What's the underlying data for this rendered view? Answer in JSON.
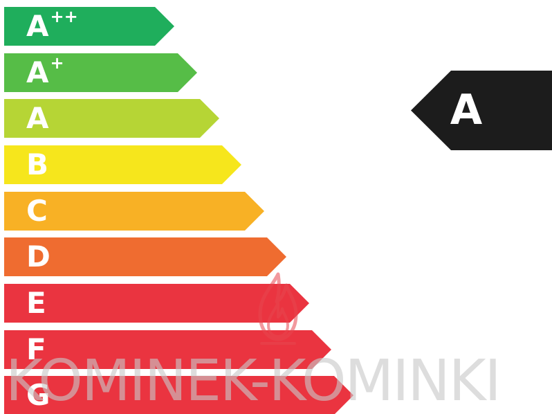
{
  "energy_scale": {
    "classes": [
      {
        "letter": "A",
        "sup": "++",
        "color": "#1fae5c"
      },
      {
        "letter": "A",
        "sup": "+",
        "color": "#56bd47"
      },
      {
        "letter": "A",
        "sup": "",
        "color": "#b6d535"
      },
      {
        "letter": "B",
        "sup": "",
        "color": "#f6e61c"
      },
      {
        "letter": "C",
        "sup": "",
        "color": "#f8b125"
      },
      {
        "letter": "D",
        "sup": "",
        "color": "#ef6c30"
      },
      {
        "letter": "E",
        "sup": "",
        "color": "#ea3440"
      },
      {
        "letter": "F",
        "sup": "",
        "color": "#ea3440"
      },
      {
        "letter": "G",
        "sup": "",
        "color": "#ea3440"
      }
    ]
  },
  "rating_indicator": {
    "label": "A",
    "color": "#1c1c1c"
  },
  "watermark": {
    "text": "KOMINEK-KOMINKI",
    "color": "#c8c8c8",
    "flame_color": "#e8474f"
  }
}
